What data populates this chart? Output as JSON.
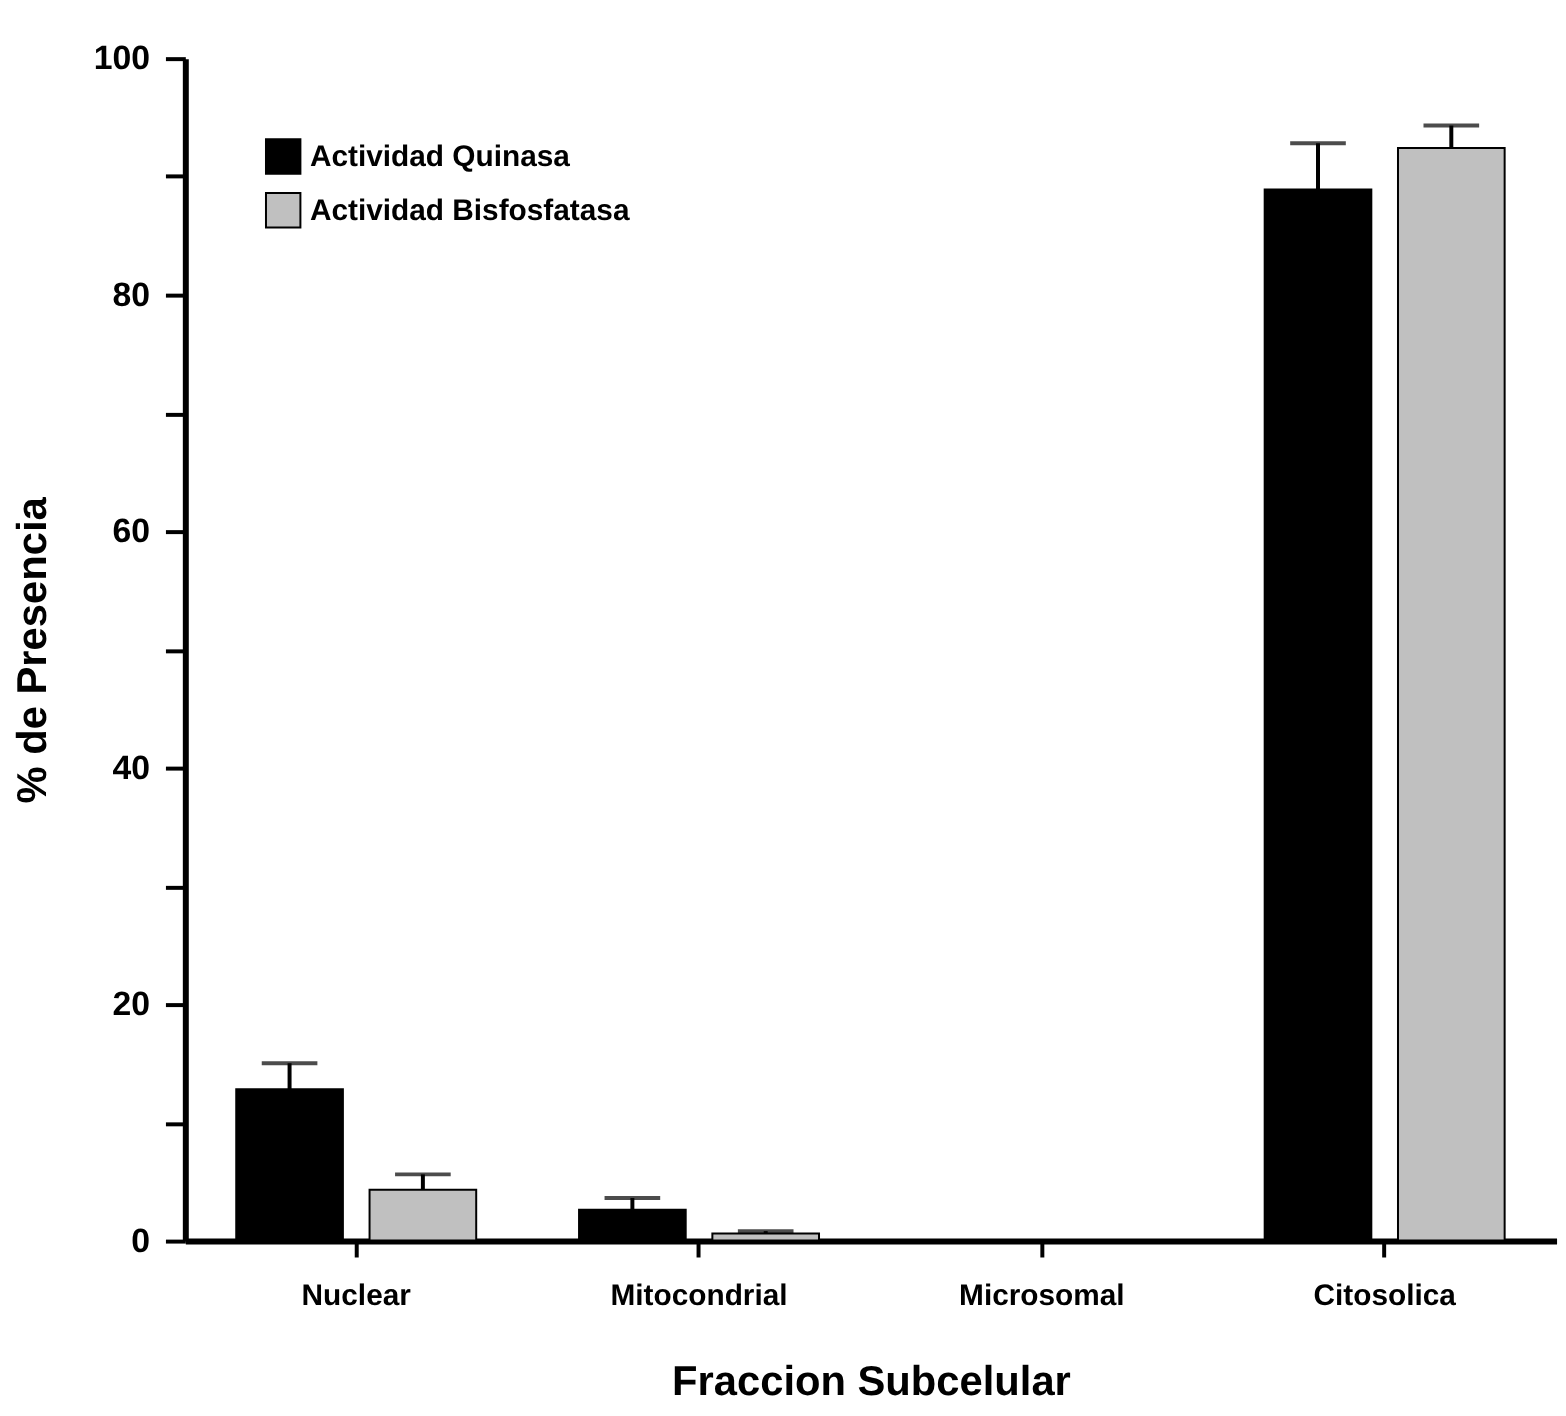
{
  "chart_data": {
    "type": "bar",
    "xlabel": "Fraccion Subcelular",
    "ylabel": "% de Presencia",
    "categories": [
      "Nuclear",
      "Mitocondrial",
      "Microsomal",
      "Citosolica"
    ],
    "series": [
      {
        "name": "Actividad Quinasa",
        "color": "#000000",
        "values": [
          12.8,
          2.6,
          null,
          88.9
        ],
        "errors": [
          [
            12.8,
            15.0
          ],
          [
            2.6,
            3.6
          ],
          null,
          [
            88.9,
            92.8
          ]
        ]
      },
      {
        "name": "Actividad Bisfosfatasa",
        "color": "#c0c0c0",
        "values": [
          4.3,
          0.6,
          null,
          92.4
        ],
        "errors": [
          [
            4.3,
            5.6
          ],
          [
            0.6,
            0.8
          ],
          null,
          [
            92.4,
            94.3
          ]
        ]
      }
    ],
    "ylim": [
      0,
      100
    ],
    "yticks": [
      0,
      {
        "value": 10,
        "label": null
      },
      20,
      {
        "value": 30,
        "label": null
      },
      40,
      {
        "value": 50,
        "label": null
      },
      60,
      {
        "value": 70,
        "label": null
      },
      80,
      {
        "value": 90,
        "label": null
      },
      100
    ],
    "grid": false,
    "legend": "top left"
  }
}
